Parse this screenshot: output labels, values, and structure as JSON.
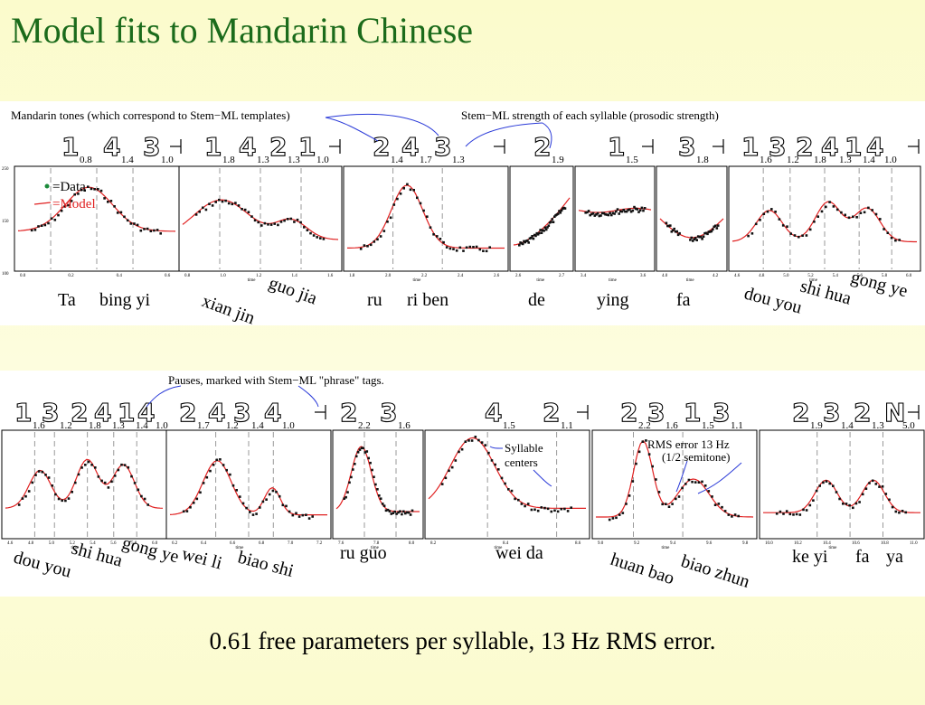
{
  "title": "Model fits to Mandarin Chinese",
  "footer": "0.61 free parameters per syllable, 13 Hz RMS error.",
  "colors": {
    "title": "#1b6b1b",
    "model": "#e02020",
    "data": "#111111",
    "arrows": "#2a3ad8",
    "background": "#fbfbcc"
  },
  "top_annotations": {
    "left": "Mandarin tones (which correspond to Stem−ML templates)",
    "right": "Stem−ML strength of each syllable (prosodic strength)"
  },
  "legend": {
    "data": "=Data",
    "model": "=Model"
  },
  "bottom_annotations": {
    "pauses": "Pauses, marked with Stem−ML \"phrase\" tags.",
    "syllable_centers_1": "Syllable",
    "syllable_centers_2": "centers",
    "rms_1": "RMS error 13 Hz",
    "rms_2": "(1/2 semitone)"
  },
  "row1": [
    {
      "tones": [
        [
          "1",
          "0.8"
        ],
        [
          "4",
          "1.4"
        ],
        [
          "3",
          "1.0"
        ]
      ],
      "phrase_end": true,
      "syllables": [
        "Ta",
        "bing yi"
      ],
      "y_ticks": [
        "250",
        "150",
        "100"
      ],
      "x_ticks": [
        "0.0",
        "0.2",
        "0.4",
        "0.6"
      ],
      "x_label": ""
    },
    {
      "tones": [
        [
          "1",
          "1.8"
        ],
        [
          "4",
          "1.3"
        ],
        [
          "2",
          "1.3"
        ],
        [
          "1",
          "1.0"
        ]
      ],
      "phrase_end": true,
      "syllables": [
        "xian jin",
        "guo jia"
      ],
      "x_ticks": [
        "0.8",
        "1.0",
        "1.2",
        "1.4",
        "1.6"
      ],
      "x_label": "time"
    },
    {
      "tones": [
        [
          "2",
          "1.4"
        ],
        [
          "4",
          "1.7"
        ],
        [
          "3",
          "1.3"
        ]
      ],
      "phrase_end": true,
      "syllables": [
        "ru",
        "ri ben"
      ],
      "x_ticks": [
        "1.8",
        "2.0",
        "2.2",
        "2.4",
        "2.6"
      ],
      "x_label": "time"
    },
    {
      "tones": [
        [
          "2",
          "1.9"
        ]
      ],
      "phrase_end": false,
      "syllables": [
        "de"
      ],
      "x_ticks": [
        "2.6",
        "2.7"
      ],
      "x_label": "time"
    },
    {
      "tones": [
        [
          "1",
          "1.5"
        ]
      ],
      "phrase_end": true,
      "syllables": [
        "ying"
      ],
      "x_ticks": [
        "3.4",
        "3.6"
      ],
      "x_label": "time"
    },
    {
      "tones": [
        [
          "3",
          "1.8"
        ]
      ],
      "phrase_end": true,
      "syllables": [
        "fa"
      ],
      "x_ticks": [
        "4.0",
        "4.2"
      ],
      "x_label": "time"
    },
    {
      "tones": [
        [
          "1",
          "1.6"
        ],
        [
          "3",
          "1.2"
        ],
        [
          "2",
          "1.8"
        ],
        [
          "4",
          "1.3"
        ],
        [
          "1",
          "1.4"
        ],
        [
          "4",
          "1.0"
        ]
      ],
      "phrase_end": true,
      "syllables": [
        "dou you",
        "shi hua",
        "gong ye"
      ],
      "x_ticks": [
        "4.6",
        "4.8",
        "5.0",
        "5.2",
        "5.4",
        "5.6",
        "5.8",
        "6.0"
      ],
      "x_label": "time"
    }
  ],
  "row2": [
    {
      "tones": [
        [
          "1",
          "1.6"
        ],
        [
          "3",
          "1.2"
        ],
        [
          "2",
          "1.8"
        ],
        [
          "4",
          "1.3"
        ],
        [
          "1",
          "1.4"
        ],
        [
          "4",
          "1.0"
        ]
      ],
      "phrase_end": false,
      "syllables": [
        "dou you",
        "shi hua",
        "gong ye"
      ],
      "x_ticks": [
        "4.6",
        "4.8",
        "5.0",
        "5.2",
        "5.4",
        "5.6",
        "5.8",
        "6.0"
      ],
      "x_label": "time"
    },
    {
      "tones": [
        [
          "2",
          "1.7"
        ],
        [
          "4",
          "1.2"
        ],
        [
          "3",
          "1.4"
        ],
        [
          "4",
          "1.0"
        ]
      ],
      "phrase_end": true,
      "syllables": [
        "wei li",
        "biao shi"
      ],
      "x_ticks": [
        "6.2",
        "6.4",
        "6.6",
        "6.8",
        "7.0",
        "7.2"
      ],
      "x_label": "time"
    },
    {
      "tones": [
        [
          "2",
          "2.2"
        ],
        [
          "3",
          "1.6"
        ]
      ],
      "phrase_end": false,
      "syllables": [
        "ru guo"
      ],
      "x_ticks": [
        "7.6",
        "7.8",
        "8.0"
      ],
      "x_label": "time"
    },
    {
      "tones": [
        [
          "4",
          "1.5"
        ],
        [
          "2",
          "1.1"
        ]
      ],
      "phrase_end": true,
      "syllables": [
        "wei da"
      ],
      "x_ticks": [
        "8.2",
        "8.4",
        "8.6"
      ],
      "x_label": "time"
    },
    {
      "tones": [
        [
          "2",
          "2.2"
        ],
        [
          "3",
          "1.6"
        ],
        [
          "1",
          "1.5"
        ],
        [
          "3",
          "1.1"
        ]
      ],
      "phrase_end": false,
      "syllables": [
        "huan bao",
        "biao zhun"
      ],
      "x_ticks": [
        "9.0",
        "9.2",
        "9.4",
        "9.6",
        "9.8"
      ],
      "x_label": "time"
    },
    {
      "tones": [
        [
          "2",
          "1.9"
        ],
        [
          "3",
          "1.4"
        ],
        [
          "2",
          "1.3"
        ],
        [
          "N",
          "5.0"
        ]
      ],
      "phrase_end": true,
      "syllables": [
        "ke yi",
        "fa",
        "ya"
      ],
      "x_ticks": [
        "10.0",
        "10.2",
        "10.4",
        "10.6",
        "10.8",
        "11.0"
      ],
      "x_label": "time"
    }
  ]
}
